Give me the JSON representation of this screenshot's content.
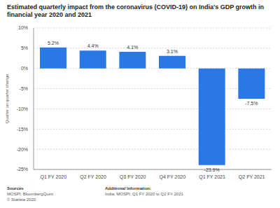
{
  "chart_data": {
    "type": "bar",
    "title": "Estimated quarterly impact from the coronavirus (COVID-19) on India's GDP growth in financial year 2020 and 2021",
    "y_label": "Quarter on quarter change",
    "categories": [
      "Q1 FY 2020",
      "Q2 FY 2020",
      "Q3 FY 2020",
      "Q4 FY 2020",
      "Q1 FY 2021",
      "Q2 FY 2021"
    ],
    "values": [
      5.2,
      4.4,
      4.1,
      3.1,
      -23.9,
      -7.5
    ],
    "value_labels": [
      "5.2%",
      "4.4%",
      "4.1%",
      "3.1%",
      "-23.9%",
      "-7.5%"
    ],
    "data_labels": true,
    "color": "#2b78e4",
    "ylim": [
      -25,
      10
    ],
    "yticks": [
      {
        "value": -25,
        "label": "-25%"
      },
      {
        "value": -20,
        "label": "-20%"
      },
      {
        "value": -15,
        "label": "-15%"
      },
      {
        "value": -10,
        "label": "-10%"
      },
      {
        "value": -5,
        "label": "-5%"
      },
      {
        "value": 0,
        "label": "0%"
      },
      {
        "value": 5,
        "label": "5%"
      },
      {
        "value": 10,
        "label": "10%"
      }
    ],
    "grid": true,
    "annotations": [
      {
        "title": "Sources",
        "lines": [
          "MOSPI; BloombergQuint",
          "© Statista 2020"
        ]
      },
      {
        "title": "Additional Information:",
        "lines": [
          "India; MOSPI; Q1 FY 2020 to Q2 FY 2021"
        ]
      }
    ]
  }
}
